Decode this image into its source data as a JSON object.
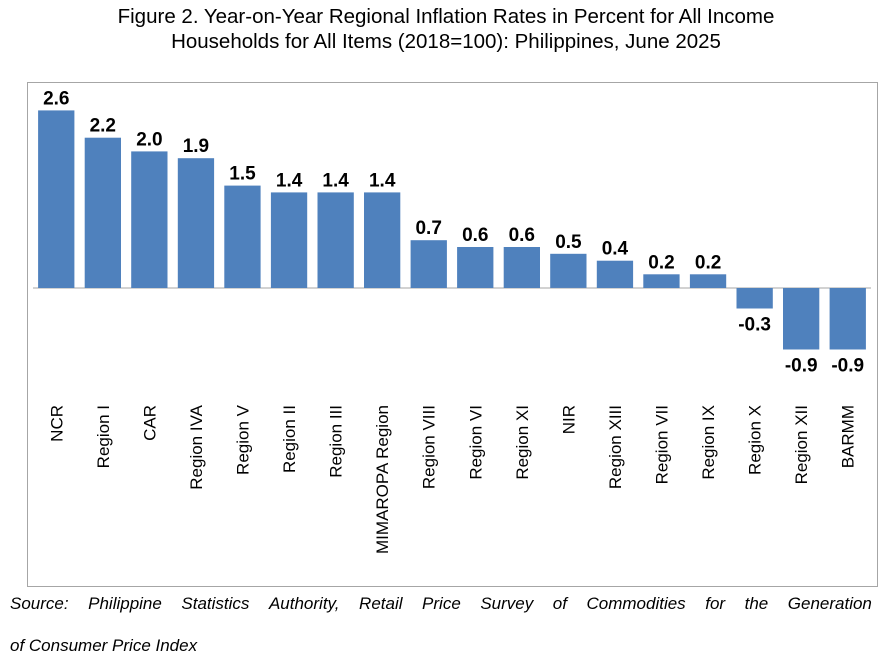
{
  "title": {
    "line1": "Figure 2. Year-on-Year Regional Inflation Rates in Percent for All Income",
    "line2": "Households for All Items (2018=100): Philippines, June 2025"
  },
  "source": {
    "line1": "Source: Philippine Statistics Authority, Retail Price Survey of Commodities for the Generation",
    "line2": "of Consumer Price Index"
  },
  "chart_data": {
    "type": "bar",
    "categories": [
      "NCR",
      "Region I",
      "CAR",
      "Region IVA",
      "Region V",
      "Region II",
      "Region III",
      "MIMAROPA Region",
      "Region VIII",
      "Region VI",
      "Region XI",
      "NIR",
      "Region XIII",
      "Region VII",
      "Region IX",
      "Region X",
      "Region XII",
      "BARMM"
    ],
    "values": [
      2.6,
      2.2,
      2.0,
      1.9,
      1.5,
      1.4,
      1.4,
      1.4,
      0.7,
      0.6,
      0.6,
      0.5,
      0.4,
      0.2,
      0.2,
      -0.3,
      -0.9,
      -0.9
    ],
    "data_labels": [
      "2.6",
      "2.2",
      "2.0",
      "1.9",
      "1.5",
      "1.4",
      "1.4",
      "1.4",
      "0.7",
      "0.6",
      "0.6",
      "0.5",
      "0.4",
      "0.2",
      "0.2",
      "-0.3",
      "-0.9",
      "-0.9"
    ],
    "ylim": [
      -0.9,
      2.6
    ],
    "grid": false,
    "legend": "none",
    "bar_color": "#4f81bd"
  }
}
